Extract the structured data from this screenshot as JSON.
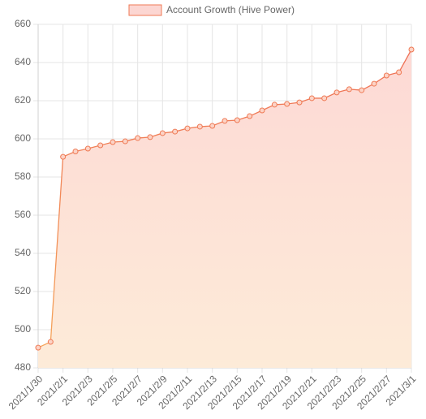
{
  "chart_data": {
    "type": "line",
    "categories": [
      "2021/1/30",
      null,
      "2021/2/1",
      null,
      "2021/2/3",
      null,
      "2021/2/5",
      null,
      "2021/2/7",
      null,
      "2021/2/9",
      null,
      "2021/2/11",
      null,
      "2021/2/13",
      null,
      "2021/2/15",
      null,
      "2021/2/17",
      null,
      "2021/2/19",
      null,
      "2021/2/21",
      null,
      "2021/2/23",
      null,
      "2021/2/25",
      null,
      "2021/2/27",
      null,
      "2021/3/1"
    ],
    "series": [
      {
        "name": "Account Growth (Hive Power)",
        "color": "#ef7a55",
        "values": [
          490.6,
          493.6,
          590.6,
          593.4,
          594.9,
          596.6,
          598.3,
          598.7,
          600.4,
          600.9,
          603,
          603.8,
          605.5,
          606.4,
          606.8,
          609.4,
          609.8,
          611.9,
          614.9,
          617.9,
          618.3,
          619.1,
          621.3,
          621.3,
          624.3,
          626,
          625.5,
          628.9,
          633.2,
          634.9,
          646.8
        ]
      }
    ],
    "ylim": [
      480,
      660
    ],
    "yticks": [
      480,
      500,
      520,
      540,
      560,
      580,
      600,
      620,
      640,
      660
    ],
    "grid": true,
    "legend": "top"
  }
}
